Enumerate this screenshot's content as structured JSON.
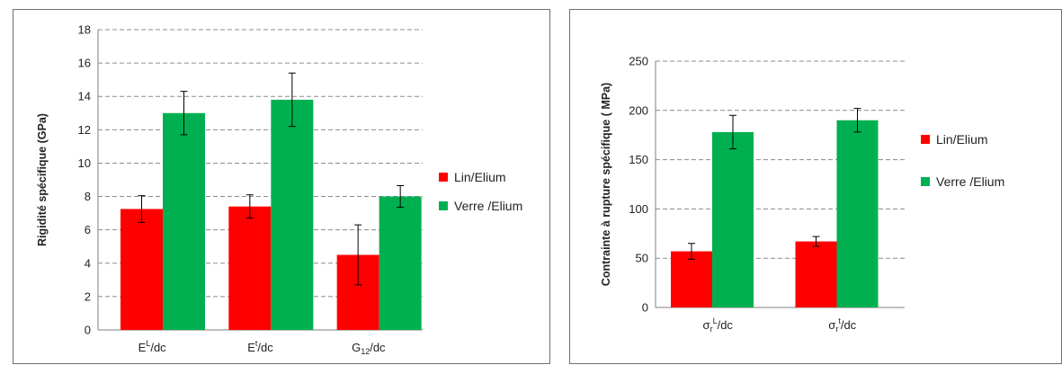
{
  "chart_data": [
    {
      "type": "bar",
      "ylabel": "Rigidité spécifique (GPa)",
      "ylim": [
        0,
        18
      ],
      "yticks": [
        0,
        2,
        4,
        6,
        8,
        10,
        12,
        14,
        16,
        18
      ],
      "grid": "horizontal-dashed",
      "legend_position": "right",
      "categories": [
        {
          "base": "E",
          "sup": "L",
          "sub": "",
          "suffix": "/dc"
        },
        {
          "base": "E",
          "sup": "t",
          "sub": "",
          "suffix": "/dc"
        },
        {
          "base": "G",
          "sup": "",
          "sub": "12",
          "suffix": "/dc"
        }
      ],
      "series": [
        {
          "name": "Lin/Elium",
          "color": "#ff0000",
          "values": [
            7.25,
            7.4,
            4.5
          ],
          "errors": [
            0.8,
            0.7,
            1.8
          ]
        },
        {
          "name": "Verre /Elium",
          "color": "#00b050",
          "values": [
            13.0,
            13.8,
            8.0
          ],
          "errors": [
            1.3,
            1.6,
            0.65
          ]
        }
      ]
    },
    {
      "type": "bar",
      "ylabel": "Contrainte à rupture spécifique ( MPa)",
      "ylim": [
        0,
        250
      ],
      "yticks": [
        0,
        50,
        100,
        150,
        200,
        250
      ],
      "grid": "horizontal-dashed",
      "legend_position": "right",
      "categories": [
        {
          "base": "σ",
          "sub": "r",
          "sup": "L",
          "suffix": "/dc"
        },
        {
          "base": "σ",
          "sub": "r",
          "sup": "t",
          "suffix": "/dc"
        }
      ],
      "series": [
        {
          "name": "Lin/Elium",
          "color": "#ff0000",
          "values": [
            57,
            67
          ],
          "errors": [
            8,
            5
          ]
        },
        {
          "name": "Verre /Elium",
          "color": "#00b050",
          "values": [
            178,
            190
          ],
          "errors": [
            17,
            12
          ]
        }
      ]
    }
  ]
}
